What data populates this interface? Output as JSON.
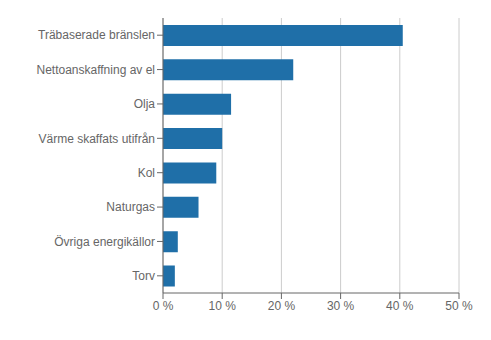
{
  "chart_data": {
    "type": "bar",
    "orientation": "horizontal",
    "categories": [
      "Torv",
      "Övriga energikällor",
      "Naturgas",
      "Kol",
      "Värme skaffats utifrån",
      "Olja",
      "Nettoanskaffning av el",
      "Träbaserade bränslen"
    ],
    "values": [
      2.0,
      2.5,
      6.0,
      9.0,
      10.0,
      11.5,
      22.0,
      40.5
    ],
    "color": "#1F6FA8",
    "xlim": [
      0,
      50
    ],
    "xticks": [
      {
        "value": 0,
        "label": "0 %"
      },
      {
        "value": 10,
        "label": "10 %"
      },
      {
        "value": 20,
        "label": "20 %"
      },
      {
        "value": 30,
        "label": "30 %"
      },
      {
        "value": 40,
        "label": "40 %"
      },
      {
        "value": 50,
        "label": "50 %"
      }
    ],
    "grid": true
  }
}
